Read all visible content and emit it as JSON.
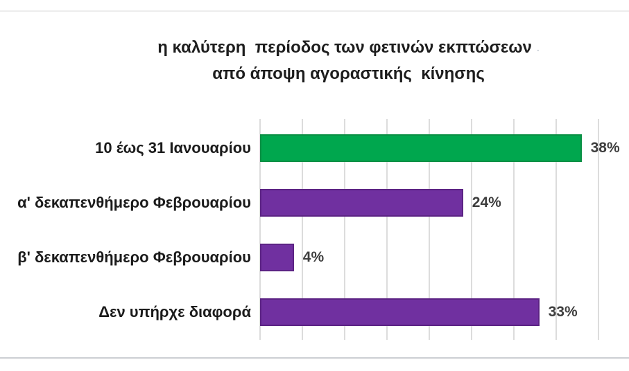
{
  "title": {
    "line1": "η καλύτερη  περίοδος των φετινών εκπτώσεων",
    "line1_mark": ".",
    "line2": "από άποψη αγοραστικής  κίνησης"
  },
  "chart_data": {
    "type": "bar",
    "orientation": "horizontal",
    "title": "η καλύτερη περίοδος των φετινών εκπτώσεων από άποψη αγοραστικής κίνησης",
    "categories": [
      "10 έως 31 Ιανουαρίου",
      "α' δεκαπενθήμερο Φεβρουαρίου",
      "β' δεκαπενθήμερο Φεβρουαρίου",
      "Δεν υπήρχε διαφορά"
    ],
    "values": [
      38,
      24,
      4,
      33
    ],
    "value_labels": [
      "38%",
      "24%",
      "4%",
      "33%"
    ],
    "bar_colors": [
      "#00a74e",
      "#7030a0",
      "#7030a0",
      "#7030a0"
    ],
    "bar_border_colors": [
      "#0a8f44",
      "#5c2384",
      "#5c2384",
      "#5c2384"
    ],
    "xlabel": "",
    "ylabel": "",
    "xlim": [
      0,
      40
    ],
    "grid_step": 5,
    "grid": true,
    "legend": false,
    "gridline_color": "#dcdcdc",
    "highlight_color": "#00a74e",
    "base_color": "#7030a0"
  }
}
